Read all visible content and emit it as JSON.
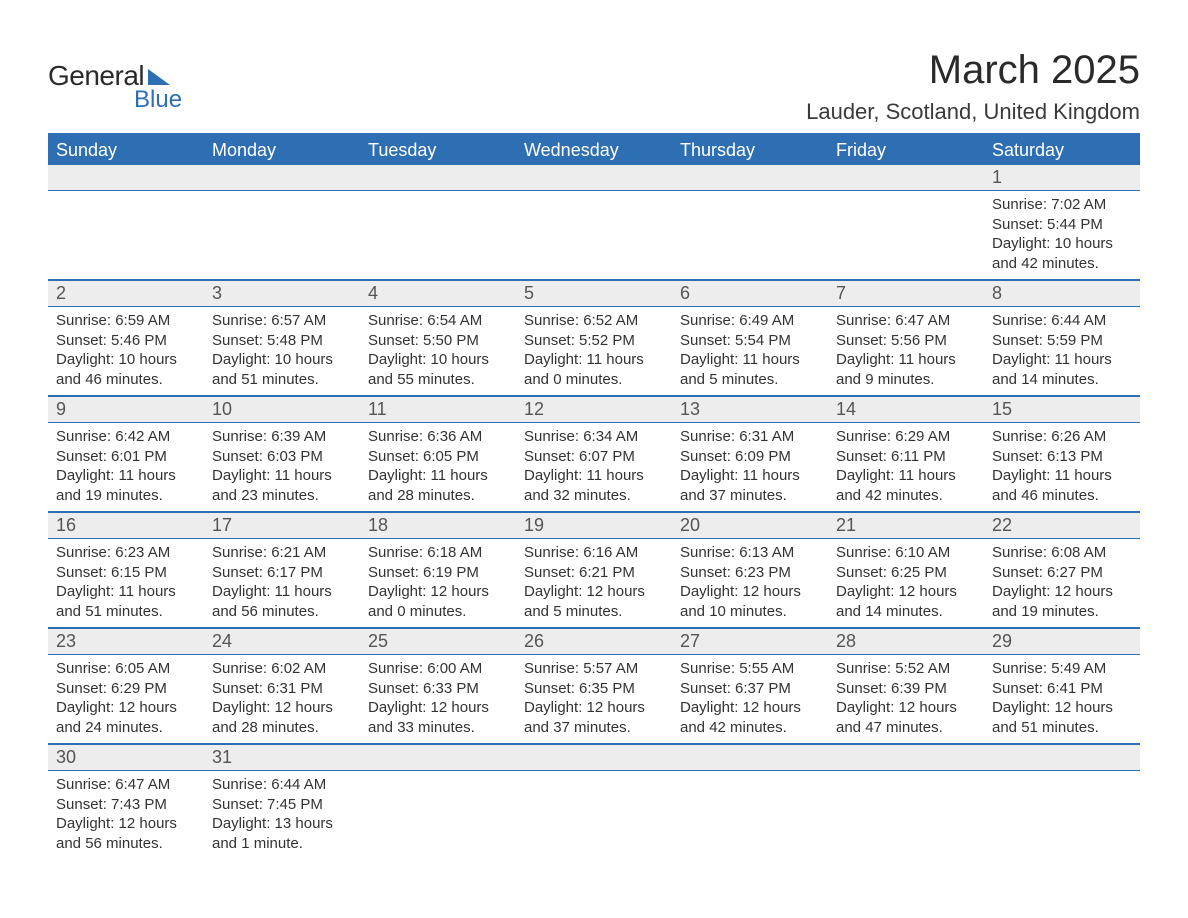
{
  "brand": {
    "name_a": "General",
    "name_b": "Blue"
  },
  "title": "March 2025",
  "location": "Lauder, Scotland, United Kingdom",
  "colors": {
    "header_bg": "#2e6fb3",
    "header_text": "#ffffff",
    "daynum_bg": "#ededed",
    "daynum_text": "#555555",
    "body_text": "#333333",
    "rule": "#2e6fb3",
    "page_bg": "#ffffff"
  },
  "typography": {
    "title_fontsize": 40,
    "location_fontsize": 22,
    "weekday_fontsize": 18,
    "daynum_fontsize": 18,
    "details_fontsize": 15
  },
  "weekdays": [
    "Sunday",
    "Monday",
    "Tuesday",
    "Wednesday",
    "Thursday",
    "Friday",
    "Saturday"
  ],
  "weeks": [
    [
      null,
      null,
      null,
      null,
      null,
      null,
      {
        "n": "1",
        "sunrise": "7:02 AM",
        "sunset": "5:44 PM",
        "day_h": "10",
        "day_m": "42 minutes"
      }
    ],
    [
      {
        "n": "2",
        "sunrise": "6:59 AM",
        "sunset": "5:46 PM",
        "day_h": "10",
        "day_m": "46 minutes"
      },
      {
        "n": "3",
        "sunrise": "6:57 AM",
        "sunset": "5:48 PM",
        "day_h": "10",
        "day_m": "51 minutes"
      },
      {
        "n": "4",
        "sunrise": "6:54 AM",
        "sunset": "5:50 PM",
        "day_h": "10",
        "day_m": "55 minutes"
      },
      {
        "n": "5",
        "sunrise": "6:52 AM",
        "sunset": "5:52 PM",
        "day_h": "11",
        "day_m": "0 minutes"
      },
      {
        "n": "6",
        "sunrise": "6:49 AM",
        "sunset": "5:54 PM",
        "day_h": "11",
        "day_m": "5 minutes"
      },
      {
        "n": "7",
        "sunrise": "6:47 AM",
        "sunset": "5:56 PM",
        "day_h": "11",
        "day_m": "9 minutes"
      },
      {
        "n": "8",
        "sunrise": "6:44 AM",
        "sunset": "5:59 PM",
        "day_h": "11",
        "day_m": "14 minutes"
      }
    ],
    [
      {
        "n": "9",
        "sunrise": "6:42 AM",
        "sunset": "6:01 PM",
        "day_h": "11",
        "day_m": "19 minutes"
      },
      {
        "n": "10",
        "sunrise": "6:39 AM",
        "sunset": "6:03 PM",
        "day_h": "11",
        "day_m": "23 minutes"
      },
      {
        "n": "11",
        "sunrise": "6:36 AM",
        "sunset": "6:05 PM",
        "day_h": "11",
        "day_m": "28 minutes"
      },
      {
        "n": "12",
        "sunrise": "6:34 AM",
        "sunset": "6:07 PM",
        "day_h": "11",
        "day_m": "32 minutes"
      },
      {
        "n": "13",
        "sunrise": "6:31 AM",
        "sunset": "6:09 PM",
        "day_h": "11",
        "day_m": "37 minutes"
      },
      {
        "n": "14",
        "sunrise": "6:29 AM",
        "sunset": "6:11 PM",
        "day_h": "11",
        "day_m": "42 minutes"
      },
      {
        "n": "15",
        "sunrise": "6:26 AM",
        "sunset": "6:13 PM",
        "day_h": "11",
        "day_m": "46 minutes"
      }
    ],
    [
      {
        "n": "16",
        "sunrise": "6:23 AM",
        "sunset": "6:15 PM",
        "day_h": "11",
        "day_m": "51 minutes"
      },
      {
        "n": "17",
        "sunrise": "6:21 AM",
        "sunset": "6:17 PM",
        "day_h": "11",
        "day_m": "56 minutes"
      },
      {
        "n": "18",
        "sunrise": "6:18 AM",
        "sunset": "6:19 PM",
        "day_h": "12",
        "day_m": "0 minutes"
      },
      {
        "n": "19",
        "sunrise": "6:16 AM",
        "sunset": "6:21 PM",
        "day_h": "12",
        "day_m": "5 minutes"
      },
      {
        "n": "20",
        "sunrise": "6:13 AM",
        "sunset": "6:23 PM",
        "day_h": "12",
        "day_m": "10 minutes"
      },
      {
        "n": "21",
        "sunrise": "6:10 AM",
        "sunset": "6:25 PM",
        "day_h": "12",
        "day_m": "14 minutes"
      },
      {
        "n": "22",
        "sunrise": "6:08 AM",
        "sunset": "6:27 PM",
        "day_h": "12",
        "day_m": "19 minutes"
      }
    ],
    [
      {
        "n": "23",
        "sunrise": "6:05 AM",
        "sunset": "6:29 PM",
        "day_h": "12",
        "day_m": "24 minutes"
      },
      {
        "n": "24",
        "sunrise": "6:02 AM",
        "sunset": "6:31 PM",
        "day_h": "12",
        "day_m": "28 minutes"
      },
      {
        "n": "25",
        "sunrise": "6:00 AM",
        "sunset": "6:33 PM",
        "day_h": "12",
        "day_m": "33 minutes"
      },
      {
        "n": "26",
        "sunrise": "5:57 AM",
        "sunset": "6:35 PM",
        "day_h": "12",
        "day_m": "37 minutes"
      },
      {
        "n": "27",
        "sunrise": "5:55 AM",
        "sunset": "6:37 PM",
        "day_h": "12",
        "day_m": "42 minutes"
      },
      {
        "n": "28",
        "sunrise": "5:52 AM",
        "sunset": "6:39 PM",
        "day_h": "12",
        "day_m": "47 minutes"
      },
      {
        "n": "29",
        "sunrise": "5:49 AM",
        "sunset": "6:41 PM",
        "day_h": "12",
        "day_m": "51 minutes"
      }
    ],
    [
      {
        "n": "30",
        "sunrise": "6:47 AM",
        "sunset": "7:43 PM",
        "day_h": "12",
        "day_m": "56 minutes"
      },
      {
        "n": "31",
        "sunrise": "6:44 AM",
        "sunset": "7:45 PM",
        "day_h": "13",
        "day_m": "1 minute"
      },
      null,
      null,
      null,
      null,
      null
    ]
  ]
}
